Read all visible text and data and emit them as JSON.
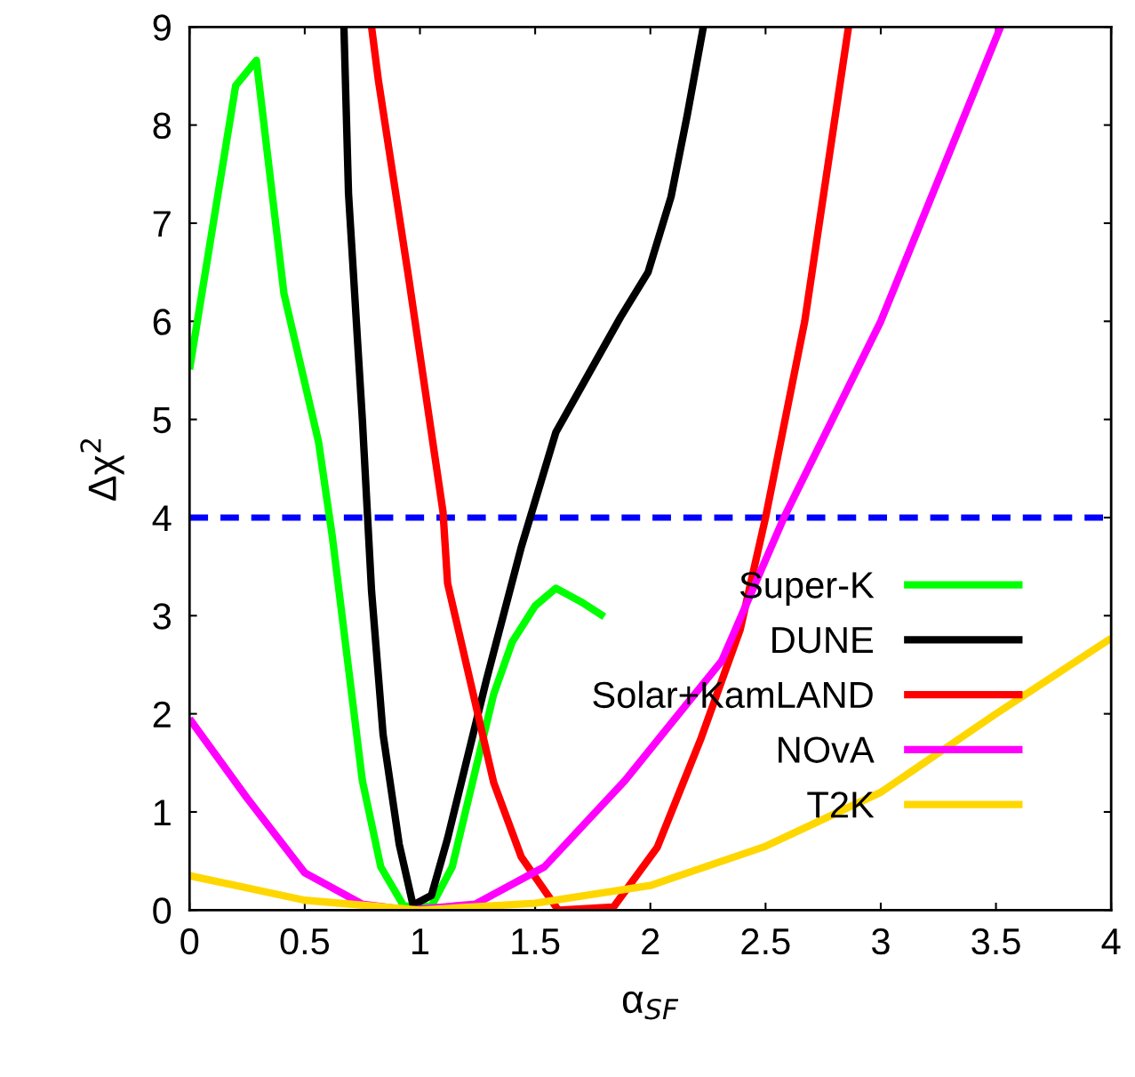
{
  "chart_data": {
    "type": "line",
    "xlabel": "α$_{SF}$",
    "ylabel": "Δχ$^{2}$",
    "xlim": [
      0,
      4
    ],
    "ylim": [
      0,
      9
    ],
    "xticks": [
      0,
      0.5,
      1,
      1.5,
      2,
      2.5,
      3,
      3.5,
      4
    ],
    "yticks": [
      0,
      1,
      2,
      3,
      4,
      5,
      6,
      7,
      8,
      9
    ],
    "grid": false,
    "legend": "right",
    "marker": "none",
    "line_style": "solid",
    "ref_lines": [
      {
        "axis": "y",
        "value": 4,
        "label": null,
        "color": "#0000ff",
        "line_style": "dashed"
      }
    ],
    "series": [
      {
        "name": "Super-K",
        "color": "#00ff00",
        "x": [
          0,
          0.2,
          0.29,
          0.41,
          0.56,
          0.62,
          0.75,
          0.83,
          0.93,
          1.05,
          1.14,
          1.32,
          1.4,
          1.5,
          1.59,
          1.7,
          1.8
        ],
        "values": [
          5.51,
          8.4,
          8.66,
          6.28,
          4.77,
          3.8,
          1.32,
          0.44,
          0.04,
          0.04,
          0.44,
          2.2,
          2.73,
          3.1,
          3.28,
          3.14,
          2.99
        ]
      },
      {
        "name": "DUNE",
        "color": "#000000",
        "x": [
          0.67,
          0.69,
          0.75,
          0.79,
          0.84,
          0.91,
          0.97,
          1.05,
          1.12,
          1.29,
          1.44,
          1.59,
          1.87,
          1.99,
          2.09,
          2.16,
          2.23
        ],
        "values": [
          9,
          7.3,
          5.0,
          3.25,
          1.79,
          0.67,
          0.05,
          0.15,
          0.73,
          2.36,
          3.7,
          4.87,
          6.04,
          6.5,
          7.27,
          8.1,
          9
        ]
      },
      {
        "name": "Solar+KamLAND",
        "color": "#ff0000",
        "x": [
          0.79,
          0.82,
          0.95,
          1.1,
          1.12,
          1.32,
          1.44,
          1.6,
          1.84,
          2.03,
          2.22,
          2.39,
          2.5,
          2.67,
          2.86
        ],
        "values": [
          9,
          8.45,
          6.46,
          4.06,
          3.33,
          1.3,
          0.54,
          0,
          0.03,
          0.64,
          1.75,
          2.86,
          4.0,
          6.0,
          9
        ]
      },
      {
        "name": "NOvA",
        "color": "#ff00ff",
        "x": [
          0,
          0.25,
          0.5,
          0.75,
          0.95,
          1.24,
          1.54,
          1.89,
          2.31,
          2.58,
          3.0,
          3.52
        ],
        "values": [
          1.95,
          1.14,
          0.38,
          0.06,
          0,
          0.06,
          0.44,
          1.32,
          2.54,
          4.0,
          6.0,
          9
        ]
      },
      {
        "name": "T2K",
        "color": "#ffd700",
        "x": [
          0,
          0.5,
          1,
          1.5,
          2,
          2.5,
          3,
          3.5,
          4
        ],
        "values": [
          0.35,
          0.1,
          0,
          0.07,
          0.25,
          0.65,
          1.2,
          2.0,
          2.77
        ]
      }
    ]
  }
}
